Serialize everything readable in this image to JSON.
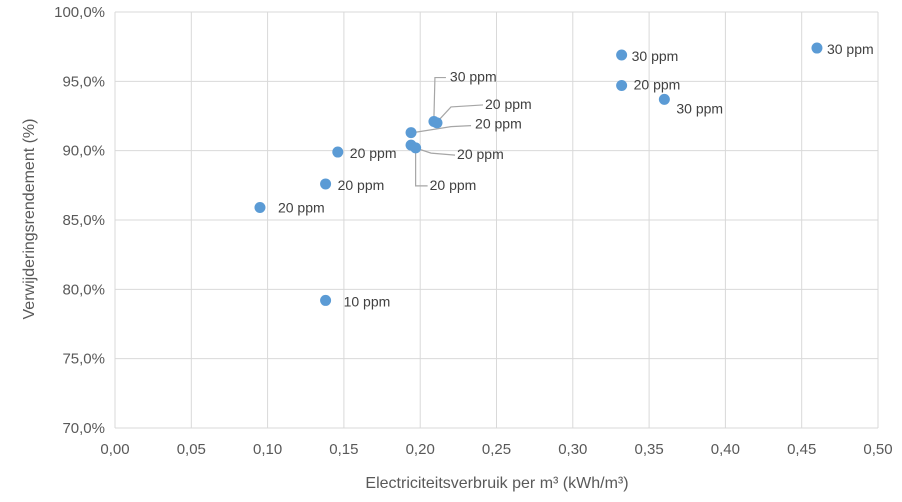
{
  "chart_data": {
    "type": "scatter",
    "xlabel": "Electriciteitsverbruik per m³ (kWh/m³)",
    "ylabel": "Verwijderingsrendement (%)",
    "xlim": [
      0,
      0.5
    ],
    "ylim": [
      70,
      100
    ],
    "x_ticks": [
      {
        "value": 0.0,
        "label": "0,00"
      },
      {
        "value": 0.05,
        "label": "0,05"
      },
      {
        "value": 0.1,
        "label": "0,10"
      },
      {
        "value": 0.15,
        "label": "0,15"
      },
      {
        "value": 0.2,
        "label": "0,20"
      },
      {
        "value": 0.25,
        "label": "0,25"
      },
      {
        "value": 0.3,
        "label": "0,30"
      },
      {
        "value": 0.35,
        "label": "0,35"
      },
      {
        "value": 0.4,
        "label": "0,40"
      },
      {
        "value": 0.45,
        "label": "0,45"
      },
      {
        "value": 0.5,
        "label": "0,50"
      }
    ],
    "y_ticks": [
      {
        "value": 70,
        "label": "70,0%"
      },
      {
        "value": 75,
        "label": "75,0%"
      },
      {
        "value": 80,
        "label": "80,0%"
      },
      {
        "value": 85,
        "label": "85,0%"
      },
      {
        "value": 90,
        "label": "90,0%"
      },
      {
        "value": 95,
        "label": "95,0%"
      },
      {
        "value": 100,
        "label": "100,0%"
      }
    ],
    "grid": true,
    "marker_color": "#5b9bd5",
    "points": [
      {
        "x": 0.095,
        "y": 85.9,
        "label": "20 ppm"
      },
      {
        "x": 0.138,
        "y": 79.2,
        "label": "10 ppm"
      },
      {
        "x": 0.138,
        "y": 87.6,
        "label": "20 ppm"
      },
      {
        "x": 0.146,
        "y": 89.9,
        "label": "20 ppm"
      },
      {
        "x": 0.194,
        "y": 91.3,
        "label": "20 ppm"
      },
      {
        "x": 0.194,
        "y": 90.4,
        "label": "20 ppm"
      },
      {
        "x": 0.197,
        "y": 90.2,
        "label": "20 ppm"
      },
      {
        "x": 0.209,
        "y": 92.1,
        "label": "30 ppm"
      },
      {
        "x": 0.211,
        "y": 92.0,
        "label": "20 ppm"
      },
      {
        "x": 0.332,
        "y": 96.9,
        "label": "30 ppm"
      },
      {
        "x": 0.332,
        "y": 94.7,
        "label": "20 ppm"
      },
      {
        "x": 0.36,
        "y": 93.7,
        "label": "30 ppm"
      },
      {
        "x": 0.46,
        "y": 97.4,
        "label": "30 ppm"
      }
    ]
  }
}
